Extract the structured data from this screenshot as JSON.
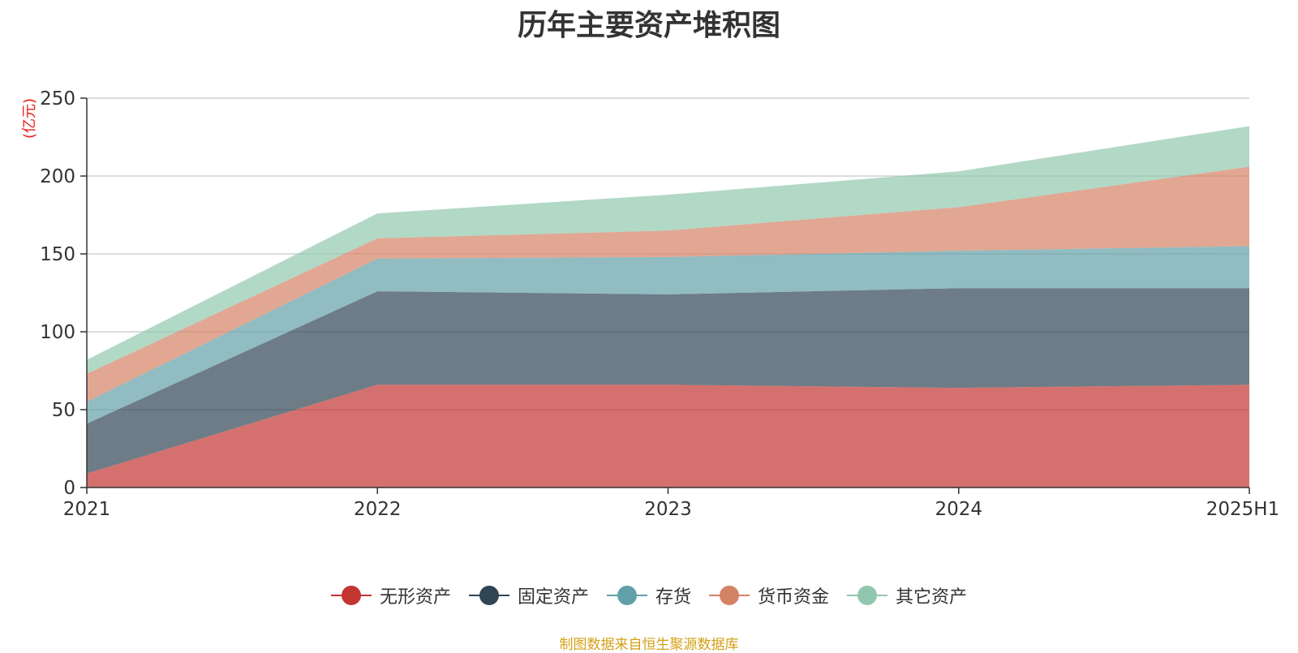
{
  "chart_data": {
    "type": "area",
    "stacked": true,
    "title": "历年主要资产堆积图",
    "yunit": "(亿元)",
    "categories": [
      "2021",
      "2022",
      "2023",
      "2024",
      "2025H1"
    ],
    "ylim": [
      0,
      250
    ],
    "yticks": [
      0,
      50,
      100,
      150,
      200,
      250
    ],
    "grid": true,
    "legend_position": "bottom",
    "series": [
      {
        "name": "无形资产",
        "color": "#c23531",
        "values": [
          9,
          66,
          66,
          64,
          66
        ]
      },
      {
        "name": "固定资产",
        "color": "#2f4554",
        "values": [
          32,
          60,
          58,
          64,
          62
        ]
      },
      {
        "name": "存货",
        "color": "#61a0a8",
        "values": [
          14,
          21,
          24,
          24,
          27
        ]
      },
      {
        "name": "货币资金",
        "color": "#d48265",
        "values": [
          18,
          13,
          17,
          28,
          51
        ]
      },
      {
        "name": "其它资产",
        "color": "#91c7ae",
        "values": [
          9,
          16,
          23,
          23,
          26
        ]
      }
    ]
  },
  "source_note": "制图数据来自恒生聚源数据库"
}
